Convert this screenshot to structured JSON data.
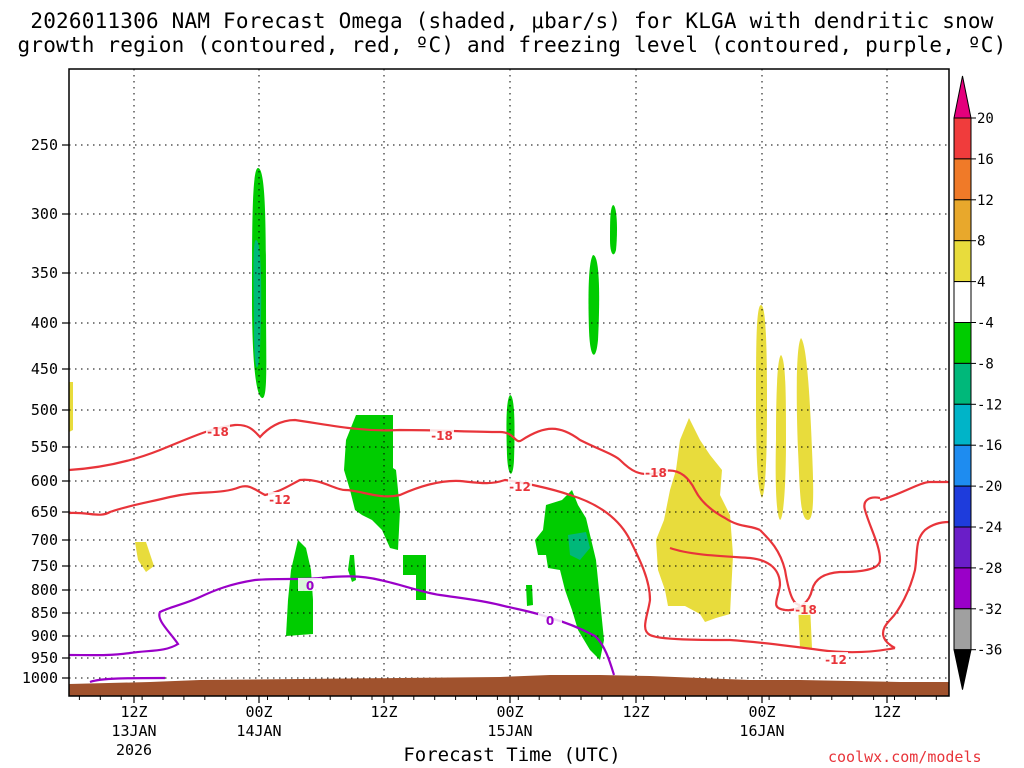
{
  "chart_data": {
    "type": "heatmap",
    "title_line1": "2026011306 NAM Forecast Omega (shaded, μbar/s) for KLGA with dendritic snow",
    "title_line2": "growth region (contoured, red, ºC) and freezing level (contoured, purple, ºC)",
    "xlabel": "Forecast Time (UTC)",
    "credit": "coolwx.com/models",
    "y_ticks": [
      "250",
      "300",
      "350",
      "400",
      "450",
      "500",
      "550",
      "600",
      "650",
      "700",
      "750",
      "800",
      "850",
      "900",
      "950",
      "1000"
    ],
    "x_ticks": [
      {
        "line1": "12Z",
        "line2": "13JAN",
        "line3": "2026"
      },
      {
        "line1": "00Z",
        "line2": "14JAN",
        "line3": ""
      },
      {
        "line1": "12Z",
        "line2": "",
        "line3": ""
      },
      {
        "line1": "00Z",
        "line2": "15JAN",
        "line3": ""
      },
      {
        "line1": "12Z",
        "line2": "",
        "line3": ""
      },
      {
        "line1": "00Z",
        "line2": "16JAN",
        "line3": ""
      },
      {
        "line1": "12Z",
        "line2": "",
        "line3": ""
      }
    ],
    "colorbar": {
      "labels": [
        "20",
        "16",
        "12",
        "8",
        "4",
        "-4",
        "-8",
        "-12",
        "-16",
        "-20",
        "-24",
        "-28",
        "-32",
        "-36"
      ],
      "colors": [
        "#e4007c",
        "#f03c3c",
        "#f07a28",
        "#e8a82c",
        "#e8dc3c",
        "#ffffff",
        "#00cc00",
        "#00b87a",
        "#00b4c8",
        "#1e8cf0",
        "#1e3cdc",
        "#6a1ec8",
        "#9a00c8",
        "#a0a0a0",
        "#000000"
      ]
    },
    "contour_labels": [
      {
        "text": "-18",
        "color": "#e8343a"
      },
      {
        "text": "-18",
        "color": "#e8343a"
      },
      {
        "text": "-18",
        "color": "#e8343a"
      },
      {
        "text": "-18",
        "color": "#e8343a"
      },
      {
        "text": "-12",
        "color": "#e8343a"
      },
      {
        "text": "-12",
        "color": "#e8343a"
      },
      {
        "text": "-12",
        "color": "#e8343a"
      },
      {
        "text": "0",
        "color": "#9a00c8"
      },
      {
        "text": "0",
        "color": "#9a00c8"
      }
    ],
    "colors": {
      "dgz_contour": "#e8343a",
      "freezing_contour": "#9a00c8",
      "terrain": "#a0522d",
      "omega_neg4_8": "#00cc00",
      "omega_neg8_12": "#00b87a",
      "omega_pos4_8": "#e8dc3c"
    }
  }
}
